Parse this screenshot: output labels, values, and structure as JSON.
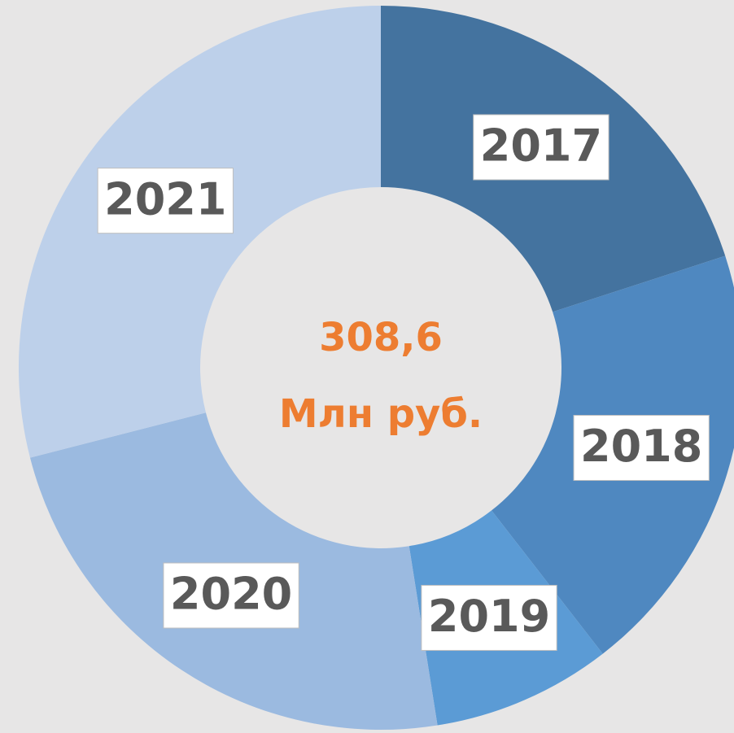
{
  "chart_data": {
    "type": "donut",
    "categories": [
      "2017",
      "2018",
      "2019",
      "2020",
      "2021"
    ],
    "values": [
      20,
      19.5,
      8,
      23.5,
      29
    ],
    "colors": [
      "#44739f",
      "#4f88c0",
      "#5b9bd5",
      "#9bbae0",
      "#bdd0ea"
    ],
    "center_text": [
      "308,6",
      "Млн руб."
    ]
  }
}
